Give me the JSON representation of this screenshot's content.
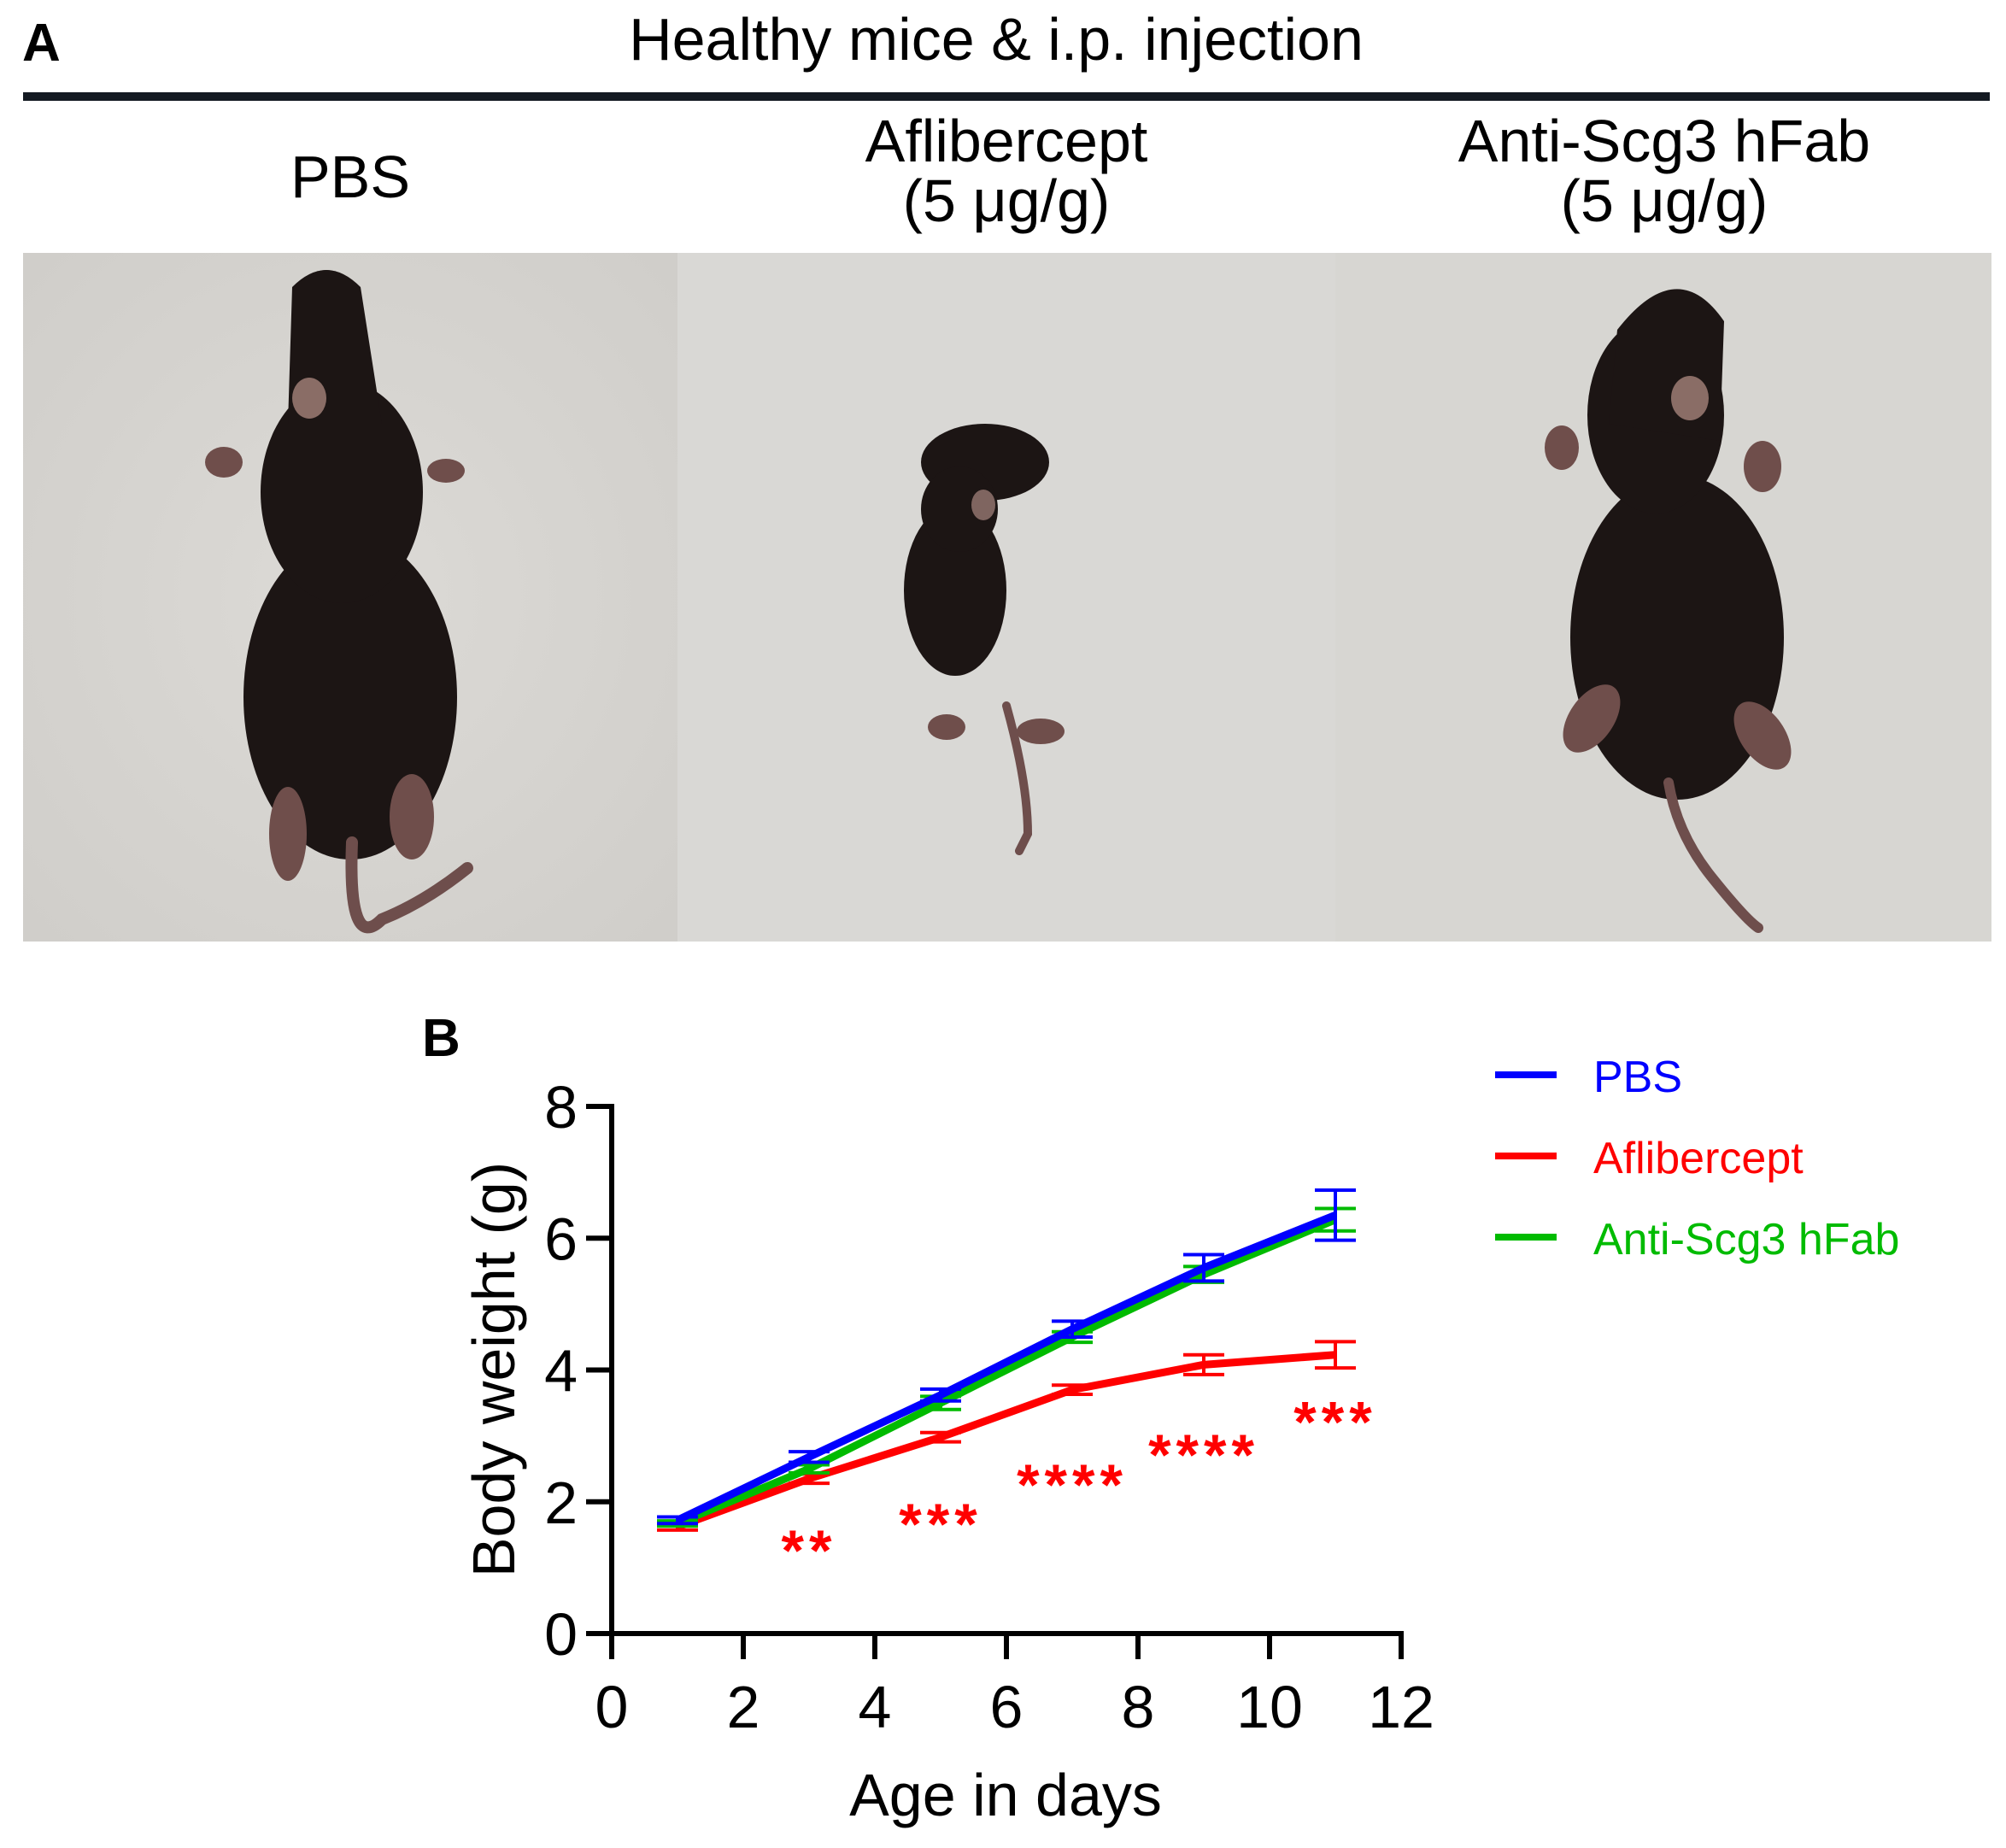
{
  "panel_a": {
    "label": "A",
    "title": "Healthy mice & i.p. injection",
    "groups": [
      {
        "name": "PBS",
        "line1": "PBS",
        "line2": ""
      },
      {
        "name": "Aflibercept",
        "line1": "Aflibercept",
        "line2": "(5 μg/g)"
      },
      {
        "name": "Anti-Scg3 hFab",
        "line1": "Anti-Scg3 hFab",
        "line2": "(5 μg/g)"
      }
    ],
    "photo_descriptions": [
      "Dorsal view of normal-size black mouse pup on white pad",
      "Dorsal view of small, growth-retarded black mouse pup on white pad",
      "Dorsal view of normal-size black mouse pup on white pad"
    ]
  },
  "panel_b": {
    "label": "B"
  },
  "chart_data": {
    "type": "line",
    "title": "",
    "xlabel": "Age in days",
    "ylabel": "Body weight (g)",
    "xlim": [
      0,
      12
    ],
    "ylim": [
      0,
      8
    ],
    "xticks": [
      0,
      2,
      4,
      6,
      8,
      10,
      12
    ],
    "yticks": [
      0,
      2,
      4,
      6,
      8
    ],
    "grid": false,
    "legend_position": "top-right outside",
    "x": [
      1,
      3,
      5,
      7,
      9,
      11
    ],
    "series": [
      {
        "name": "PBS",
        "color": "#0000ff",
        "values": [
          1.72,
          2.68,
          3.62,
          4.62,
          5.55,
          6.35
        ],
        "error": [
          0.05,
          0.08,
          0.09,
          0.12,
          0.2,
          0.38
        ]
      },
      {
        "name": "Aflibercept",
        "color": "#ff0000",
        "values": [
          1.62,
          2.35,
          2.98,
          3.7,
          4.08,
          4.23
        ],
        "error": [
          0.05,
          0.07,
          0.07,
          0.07,
          0.15,
          0.2
        ]
      },
      {
        "name": "Anti-Scg3 hFab",
        "color": "#00bb00",
        "values": [
          1.67,
          2.5,
          3.5,
          4.5,
          5.45,
          6.28
        ],
        "error": [
          0.04,
          0.06,
          0.1,
          0.08,
          0.12,
          0.17
        ]
      }
    ],
    "annotations": [
      {
        "x": 3,
        "y": 1.35,
        "text": "**",
        "color": "#ff0000"
      },
      {
        "x": 5,
        "y": 1.75,
        "text": "***",
        "color": "#ff0000"
      },
      {
        "x": 7,
        "y": 2.35,
        "text": "****",
        "color": "#ff0000"
      },
      {
        "x": 9,
        "y": 2.8,
        "text": "****",
        "color": "#ff0000"
      },
      {
        "x": 11,
        "y": 3.3,
        "text": "***",
        "color": "#ff0000"
      }
    ]
  }
}
